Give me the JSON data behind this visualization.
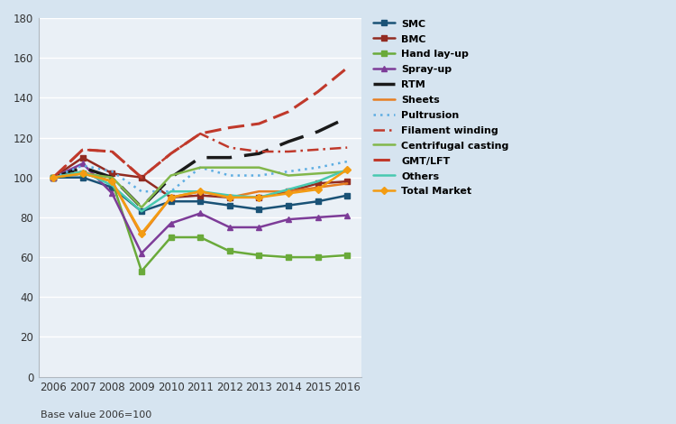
{
  "years": [
    2006,
    2007,
    2008,
    2009,
    2010,
    2011,
    2012,
    2013,
    2014,
    2015,
    2016
  ],
  "series": {
    "SMC": [
      100,
      100,
      95,
      83,
      88,
      88,
      86,
      84,
      86,
      88,
      91
    ],
    "BMC": [
      100,
      110,
      102,
      100,
      90,
      91,
      90,
      90,
      93,
      97,
      98
    ],
    "Hand lay-up": [
      100,
      102,
      98,
      53,
      70,
      70,
      63,
      61,
      60,
      60,
      61
    ],
    "Spray-up": [
      100,
      107,
      92,
      62,
      77,
      82,
      75,
      75,
      79,
      80,
      81
    ],
    "RTM": [
      100,
      105,
      100,
      85,
      100,
      110,
      110,
      112,
      118,
      123,
      130
    ],
    "Sheets": [
      100,
      103,
      98,
      71,
      90,
      93,
      90,
      93,
      93,
      95,
      97
    ],
    "Pultrusion": [
      100,
      106,
      103,
      93,
      93,
      105,
      101,
      101,
      103,
      105,
      108
    ],
    "Filament winding": [
      100,
      114,
      113,
      100,
      112,
      122,
      115,
      113,
      113,
      114,
      115
    ],
    "Centrifugal casting": [
      100,
      102,
      100,
      85,
      101,
      105,
      105,
      105,
      101,
      102,
      103
    ],
    "GMT/LFT": [
      100,
      114,
      113,
      100,
      112,
      122,
      125,
      127,
      133,
      143,
      155
    ],
    "Others": [
      100,
      103,
      96,
      83,
      93,
      93,
      91,
      90,
      94,
      98,
      104
    ],
    "Total Market": [
      100,
      102,
      98,
      72,
      90,
      93,
      90,
      90,
      92,
      94,
      104
    ]
  },
  "colors": {
    "SMC": "#1a5276",
    "BMC": "#922b21",
    "Hand lay-up": "#6aaa3a",
    "Spray-up": "#7d3c98",
    "RTM": "#1a1a1a",
    "Sheets": "#e67e22",
    "Pultrusion": "#5dade2",
    "Filament winding": "#c0392b",
    "Centrifugal casting": "#82b74b",
    "GMT/LFT": "#c0392b",
    "Others": "#48c9b0",
    "Total Market": "#f39c12"
  },
  "linestyles": {
    "SMC": "solid",
    "BMC": "solid",
    "Hand lay-up": "solid",
    "Spray-up": "solid",
    "RTM": "dashed",
    "Sheets": "solid",
    "Pultrusion": "dotted",
    "Filament winding": "dashdot",
    "Centrifugal casting": "solid",
    "GMT/LFT": "dashed",
    "Others": "solid",
    "Total Market": "solid"
  },
  "markers": {
    "SMC": "s",
    "BMC": "s",
    "Hand lay-up": "s",
    "Spray-up": "^",
    "RTM": "None",
    "Sheets": "None",
    "Pultrusion": "None",
    "Filament winding": "None",
    "Centrifugal casting": "None",
    "GMT/LFT": "None",
    "Others": "None",
    "Total Market": "D"
  },
  "linewidths": {
    "SMC": 1.8,
    "BMC": 1.8,
    "Hand lay-up": 1.8,
    "Spray-up": 1.8,
    "RTM": 2.5,
    "Sheets": 1.8,
    "Pultrusion": 1.8,
    "Filament winding": 1.8,
    "Centrifugal casting": 1.8,
    "GMT/LFT": 2.2,
    "Others": 1.8,
    "Total Market": 1.8
  },
  "ylim": [
    0,
    180
  ],
  "yticks": [
    0,
    20,
    40,
    60,
    80,
    100,
    120,
    140,
    160,
    180
  ],
  "outer_bg": "#d6e4f0",
  "plot_bg": "#eaf0f6",
  "grid_color": "#ffffff",
  "note": "Base value 2006=100"
}
